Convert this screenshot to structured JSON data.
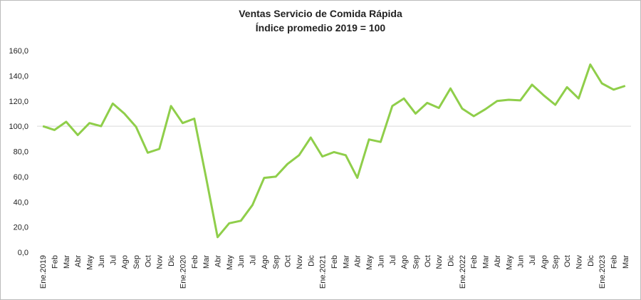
{
  "chart_data": {
    "type": "line",
    "title": "Ventas Servicio de Comida Rápida",
    "subtitle": "Índice promedio 2019 = 100",
    "categories": [
      "Ene.2019",
      "Feb",
      "Mar",
      "Abr",
      "May",
      "Jun",
      "Jul",
      "Ago",
      "Sep",
      "Oct",
      "Nov",
      "Dic",
      "Ene.2020",
      "Feb",
      "Mar",
      "Abr",
      "May",
      "Jun",
      "Jul",
      "Ago",
      "Sep",
      "Oct",
      "Nov",
      "Dic",
      "Ene.2021",
      "Feb",
      "Mar",
      "Abr",
      "May",
      "Jun",
      "Jul",
      "Ago",
      "Sep",
      "Oct",
      "Nov",
      "Dic",
      "Ene.2022",
      "Feb",
      "Mar",
      "Abr",
      "May",
      "Jun",
      "Jul",
      "Ago",
      "Sep",
      "Oct",
      "Nov",
      "Dic",
      "Ene.2023",
      "Feb",
      "Mar"
    ],
    "series": [
      {
        "name": "Ventas",
        "color": "#8fce4a",
        "values": [
          100,
          97,
          103.5,
          93,
          102.5,
          100,
          118,
          110,
          99.5,
          79,
          82,
          116,
          102.5,
          106,
          60,
          12,
          23,
          25,
          37.5,
          59,
          60,
          70,
          77,
          91,
          76,
          79.5,
          77,
          59,
          89.5,
          87.5,
          116,
          122,
          110,
          118.5,
          114.5,
          130,
          114,
          108,
          113.5,
          120,
          121,
          120.5,
          133,
          124.5,
          117,
          131,
          122,
          149,
          134,
          129,
          132
        ]
      }
    ],
    "ylim": [
      0,
      160
    ],
    "yticks": [
      {
        "value": 0,
        "label": "0,0"
      },
      {
        "value": 20,
        "label": "20,0"
      },
      {
        "value": 40,
        "label": "40,0"
      },
      {
        "value": 60,
        "label": "60,0"
      },
      {
        "value": 80,
        "label": "80,0"
      },
      {
        "value": 100,
        "label": "100,0"
      },
      {
        "value": 120,
        "label": "120,0"
      },
      {
        "value": 140,
        "label": "140,0"
      },
      {
        "value": 160,
        "label": "160,0"
      }
    ],
    "reference_line": 100,
    "grid": false
  }
}
